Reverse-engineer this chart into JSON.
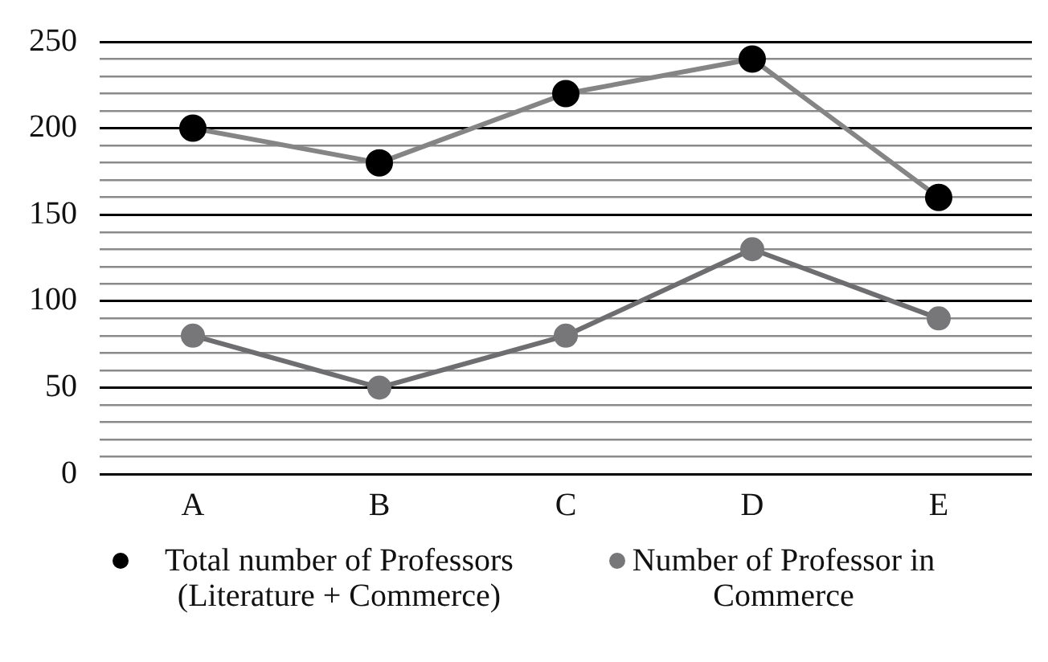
{
  "chart_data": {
    "type": "line",
    "categories": [
      "A",
      "B",
      "C",
      "D",
      "E"
    ],
    "series": [
      {
        "name": "Total number of Professors (Literature + Commerce)",
        "color": "#000000",
        "values": [
          200,
          180,
          220,
          240,
          160
        ]
      },
      {
        "name": "Number of Professor in Commerce",
        "color": "#77777a",
        "values": [
          80,
          50,
          80,
          130,
          90
        ]
      }
    ],
    "ylim": [
      0,
      250
    ],
    "yticks": [
      0,
      {
        "value": 10,
        "label": null
      },
      {
        "value": 20,
        "label": null
      },
      {
        "value": 30,
        "label": null
      },
      {
        "value": 40,
        "label": null
      },
      50,
      {
        "value": 60,
        "label": null
      },
      {
        "value": 70,
        "label": null
      },
      {
        "value": 80,
        "label": null
      },
      {
        "value": 90,
        "label": null
      },
      100,
      {
        "value": 110,
        "label": null
      },
      {
        "value": 120,
        "label": null
      },
      {
        "value": 130,
        "label": null
      },
      {
        "value": 140,
        "label": null
      },
      150,
      {
        "value": 160,
        "label": null
      },
      {
        "value": 170,
        "label": null
      },
      {
        "value": 180,
        "label": null
      },
      {
        "value": 190,
        "label": null
      },
      200,
      {
        "value": 210,
        "label": null
      },
      {
        "value": 220,
        "label": null
      },
      {
        "value": 230,
        "label": null
      },
      {
        "value": 240,
        "label": null
      },
      250
    ],
    "grid": "y",
    "legend": "bottom",
    "marker": "circle",
    "line_style": "solid"
  }
}
